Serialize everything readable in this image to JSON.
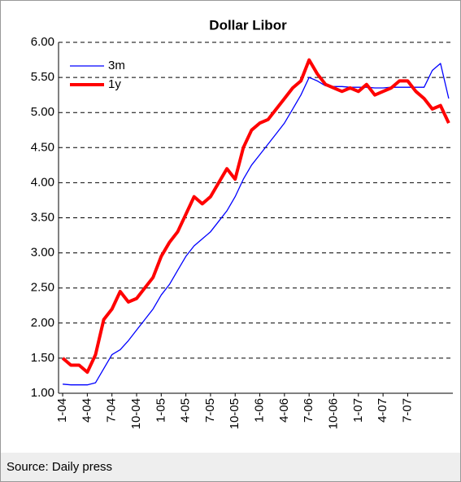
{
  "chart_data": {
    "type": "line",
    "title": "Dollar Libor",
    "source": "Source: Daily press",
    "categories": [
      "1-04",
      null,
      null,
      "4-04",
      null,
      null,
      "7-04",
      null,
      null,
      "10-04",
      null,
      null,
      "1-05",
      null,
      null,
      "4-05",
      null,
      null,
      "7-05",
      null,
      null,
      "10-05",
      null,
      null,
      "1-06",
      null,
      null,
      "4-06",
      null,
      null,
      "7-06",
      null,
      null,
      "10-06",
      null,
      null,
      "1-07",
      null,
      null,
      "4-07",
      null,
      null,
      "7-07",
      null,
      null,
      null,
      null,
      null
    ],
    "series": [
      {
        "name": "3m",
        "color": "#0000ff",
        "values": [
          1.13,
          1.12,
          1.12,
          1.12,
          1.15,
          1.35,
          1.55,
          1.62,
          1.75,
          1.9,
          2.05,
          2.2,
          2.4,
          2.55,
          2.75,
          2.95,
          3.1,
          3.2,
          3.3,
          3.45,
          3.6,
          3.8,
          4.05,
          4.25,
          4.4,
          4.55,
          4.7,
          4.85,
          5.05,
          5.25,
          5.5,
          5.45,
          5.38,
          5.37,
          5.37,
          5.36,
          5.36,
          5.36,
          5.35,
          5.35,
          5.36,
          5.36,
          5.36,
          5.36,
          5.36,
          5.6,
          5.7,
          5.2
        ]
      },
      {
        "name": "1y",
        "color": "#ff0000",
        "values": [
          1.5,
          1.4,
          1.4,
          1.3,
          1.55,
          2.05,
          2.2,
          2.45,
          2.3,
          2.35,
          2.5,
          2.65,
          2.95,
          3.15,
          3.3,
          3.55,
          3.8,
          3.7,
          3.8,
          4.0,
          4.2,
          4.05,
          4.5,
          4.75,
          4.85,
          4.9,
          5.05,
          5.2,
          5.35,
          5.45,
          5.75,
          5.55,
          5.4,
          5.35,
          5.3,
          5.35,
          5.3,
          5.4,
          5.25,
          5.3,
          5.35,
          5.45,
          5.45,
          5.3,
          5.2,
          5.05,
          5.1,
          4.85
        ]
      }
    ],
    "ylim": [
      1,
      6
    ],
    "yticks": [
      {
        "value": 1,
        "label": "1.00"
      },
      {
        "value": 1.5,
        "label": "1.50"
      },
      {
        "value": 2,
        "label": "2.00"
      },
      {
        "value": 2.5,
        "label": "2.50"
      },
      {
        "value": 3,
        "label": "3.00"
      },
      {
        "value": 3.5,
        "label": "3.50"
      },
      {
        "value": 4,
        "label": "4.00"
      },
      {
        "value": 4.5,
        "label": "4.50"
      },
      {
        "value": 5,
        "label": "5.00"
      },
      {
        "value": 5.5,
        "label": "5.50"
      },
      {
        "value": 6,
        "label": "6.00"
      }
    ],
    "grid": true,
    "legend": "top-left"
  }
}
